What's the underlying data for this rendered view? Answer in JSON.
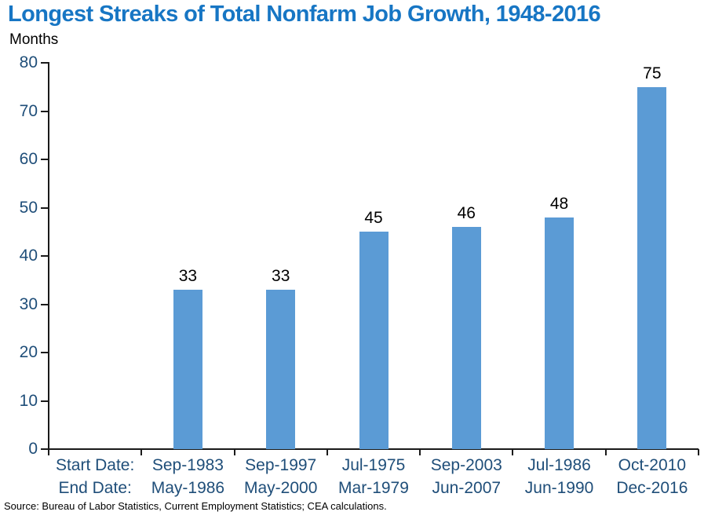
{
  "title": "Longest Streaks of Total Nonfarm Job Growth, 1948-2016",
  "unit_label": "Months",
  "source": "Source: Bureau of Labor Statistics, Current Employment Statistics; CEA calculations.",
  "colors": {
    "title": "#1776C4",
    "axis_label": "#1F4E79",
    "bar": "#5B9BD5",
    "value_label": "#000000",
    "axis_line": "#1a1a1a",
    "source_text": "#000000",
    "background": "#ffffff"
  },
  "chart_data": {
    "type": "bar",
    "title": "Longest Streaks of Total Nonfarm Job Growth, 1948-2016",
    "ylabel": "Months",
    "xlabel": "",
    "ylim": [
      0,
      80
    ],
    "yticks": [
      0,
      10,
      20,
      30,
      40,
      50,
      60,
      70,
      80
    ],
    "grid": false,
    "legend": false,
    "row_headers": {
      "start": "Start Date:",
      "end": "End Date:"
    },
    "categories": [
      {
        "start": "Sep-1983",
        "end": "May-1986"
      },
      {
        "start": "Sep-1997",
        "end": "May-2000"
      },
      {
        "start": "Jul-1975",
        "end": "Mar-1979"
      },
      {
        "start": "Sep-2003",
        "end": "Jun-2007"
      },
      {
        "start": "Jul-1986",
        "end": "Jun-1990"
      },
      {
        "start": "Oct-2010",
        "end": "Dec-2016"
      }
    ],
    "values": [
      33,
      33,
      45,
      46,
      48,
      75
    ],
    "bar_color": "#5B9BD5"
  }
}
